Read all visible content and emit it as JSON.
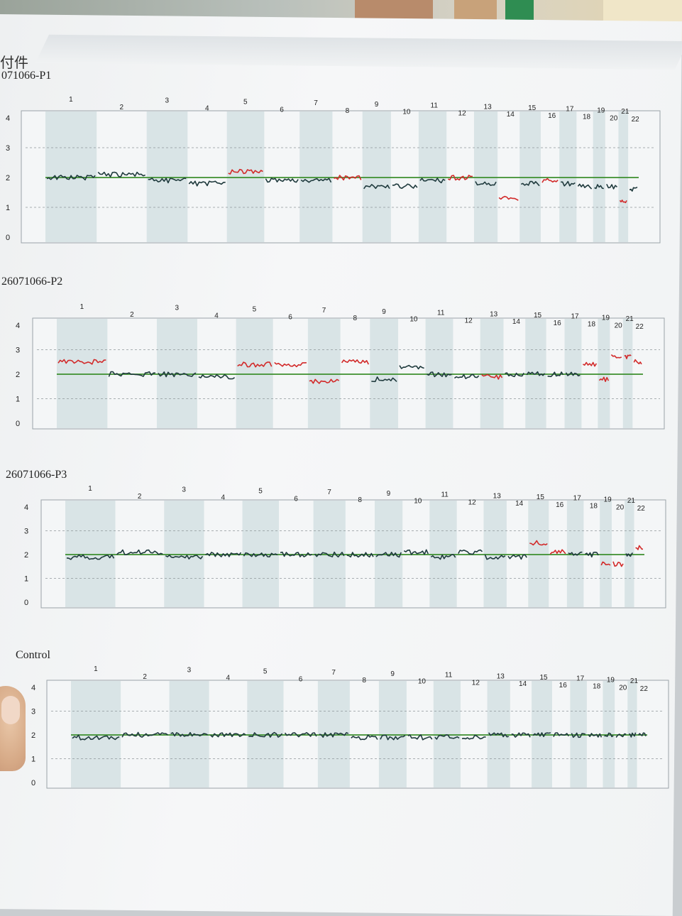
{
  "page": {
    "header_fragment": "付件"
  },
  "chart_data": [
    {
      "type": "line",
      "title": "071066-P1",
      "ylim": [
        0,
        4
      ],
      "yticks": [
        "0",
        "1",
        "2",
        "3",
        "4"
      ],
      "baseline": 2,
      "grid": true,
      "chromosomes": [
        "1",
        "2",
        "3",
        "4",
        "5",
        "6",
        "7",
        "8",
        "9",
        "10",
        "11",
        "12",
        "13",
        "14",
        "15",
        "16",
        "17",
        "18",
        "19",
        "20",
        "21",
        "22"
      ],
      "segments": [
        {
          "chr": "1",
          "value": 2.0
        },
        {
          "chr": "2",
          "value": 2.1
        },
        {
          "chr": "3",
          "value": 1.9
        },
        {
          "chr": "4",
          "value": 1.8
        },
        {
          "chr": "5",
          "value": 2.2,
          "flag": "gain"
        },
        {
          "chr": "6",
          "value": 1.9
        },
        {
          "chr": "7",
          "value": 1.9
        },
        {
          "chr": "8",
          "value": 2.0,
          "flag": "gain"
        },
        {
          "chr": "9",
          "value": 1.7
        },
        {
          "chr": "10",
          "value": 1.7
        },
        {
          "chr": "11",
          "value": 1.9
        },
        {
          "chr": "12",
          "value": 2.0,
          "flag": "gain"
        },
        {
          "chr": "13",
          "value": 1.8
        },
        {
          "chr": "14",
          "value": 1.3,
          "flag": "loss"
        },
        {
          "chr": "15",
          "value": 1.8
        },
        {
          "chr": "16",
          "value": 1.9,
          "flag": "gain"
        },
        {
          "chr": "17",
          "value": 1.8
        },
        {
          "chr": "18",
          "value": 1.7
        },
        {
          "chr": "19",
          "value": 1.7
        },
        {
          "chr": "20",
          "value": 1.7
        },
        {
          "chr": "21",
          "value": 1.2,
          "flag": "loss"
        },
        {
          "chr": "22",
          "value": 1.6
        }
      ]
    },
    {
      "type": "line",
      "title": "26071066-P2",
      "ylim": [
        0,
        4
      ],
      "yticks": [
        "0",
        "1",
        "2",
        "3",
        "4"
      ],
      "baseline": 2,
      "grid": true,
      "chromosomes": [
        "1",
        "2",
        "3",
        "4",
        "5",
        "6",
        "7",
        "8",
        "9",
        "10",
        "11",
        "12",
        "13",
        "14",
        "15",
        "16",
        "17",
        "18",
        "19",
        "20",
        "21",
        "22"
      ],
      "segments": [
        {
          "chr": "1",
          "value": 2.5,
          "flag": "gain"
        },
        {
          "chr": "2",
          "value": 2.0
        },
        {
          "chr": "3",
          "value": 2.0
        },
        {
          "chr": "4",
          "value": 1.9
        },
        {
          "chr": "5",
          "value": 2.4,
          "flag": "gain"
        },
        {
          "chr": "6",
          "value": 2.4,
          "flag": "gain"
        },
        {
          "chr": "7",
          "value": 1.7,
          "flag": "loss"
        },
        {
          "chr": "8",
          "value": 2.5,
          "flag": "gain"
        },
        {
          "chr": "9",
          "value": 1.8
        },
        {
          "chr": "10",
          "value": 2.3
        },
        {
          "chr": "11",
          "value": 2.0
        },
        {
          "chr": "12",
          "value": 1.9
        },
        {
          "chr": "13",
          "value": 1.9,
          "flag": "loss"
        },
        {
          "chr": "14",
          "value": 2.0
        },
        {
          "chr": "15",
          "value": 2.0
        },
        {
          "chr": "16",
          "value": 2.0
        },
        {
          "chr": "17",
          "value": 2.0
        },
        {
          "chr": "18",
          "value": 2.4,
          "flag": "gain"
        },
        {
          "chr": "19",
          "value": 1.8,
          "flag": "loss"
        },
        {
          "chr": "20",
          "value": 2.7,
          "flag": "gain"
        },
        {
          "chr": "21",
          "value": 2.7,
          "flag": "gain"
        },
        {
          "chr": "22",
          "value": 2.5,
          "flag": "gain"
        }
      ]
    },
    {
      "type": "line",
      "title": "26071066-P3",
      "ylim": [
        0,
        4
      ],
      "yticks": [
        "0",
        "1",
        "2",
        "3",
        "4"
      ],
      "baseline": 2,
      "grid": true,
      "chromosomes": [
        "1",
        "2",
        "3",
        "4",
        "5",
        "6",
        "7",
        "8",
        "9",
        "10",
        "11",
        "12",
        "13",
        "14",
        "15",
        "16",
        "17",
        "18",
        "19",
        "20",
        "21",
        "22"
      ],
      "segments": [
        {
          "chr": "1",
          "value": 1.9
        },
        {
          "chr": "2",
          "value": 2.1
        },
        {
          "chr": "3",
          "value": 1.9
        },
        {
          "chr": "4",
          "value": 2.0
        },
        {
          "chr": "5",
          "value": 2.0
        },
        {
          "chr": "6",
          "value": 2.0
        },
        {
          "chr": "7",
          "value": 2.0
        },
        {
          "chr": "8",
          "value": 2.0
        },
        {
          "chr": "9",
          "value": 2.0
        },
        {
          "chr": "10",
          "value": 2.1
        },
        {
          "chr": "11",
          "value": 1.9
        },
        {
          "chr": "12",
          "value": 2.1
        },
        {
          "chr": "13",
          "value": 1.9
        },
        {
          "chr": "14",
          "value": 1.9
        },
        {
          "chr": "15",
          "value": 2.5,
          "flag": "gain"
        },
        {
          "chr": "16",
          "value": 2.1,
          "flag": "gain"
        },
        {
          "chr": "17",
          "value": 2.0
        },
        {
          "chr": "18",
          "value": 2.0
        },
        {
          "chr": "19",
          "value": 1.6,
          "flag": "loss"
        },
        {
          "chr": "20",
          "value": 1.6,
          "flag": "loss"
        },
        {
          "chr": "21",
          "value": 2.0
        },
        {
          "chr": "22",
          "value": 2.3,
          "flag": "gain"
        }
      ]
    },
    {
      "type": "line",
      "title": "Control",
      "ylim": [
        0,
        4
      ],
      "yticks": [
        "0",
        "1",
        "2",
        "3",
        "4"
      ],
      "baseline": 2,
      "grid": true,
      "chromosomes": [
        "1",
        "2",
        "3",
        "4",
        "5",
        "6",
        "7",
        "8",
        "9",
        "10",
        "11",
        "12",
        "13",
        "14",
        "15",
        "16",
        "17",
        "18",
        "19",
        "20",
        "21",
        "22"
      ],
      "segments": [
        {
          "chr": "1",
          "value": 1.9
        },
        {
          "chr": "2",
          "value": 2.0
        },
        {
          "chr": "3",
          "value": 2.0
        },
        {
          "chr": "4",
          "value": 2.0
        },
        {
          "chr": "5",
          "value": 2.0
        },
        {
          "chr": "6",
          "value": 2.0
        },
        {
          "chr": "7",
          "value": 2.0
        },
        {
          "chr": "8",
          "value": 1.9
        },
        {
          "chr": "9",
          "value": 1.9
        },
        {
          "chr": "10",
          "value": 1.9
        },
        {
          "chr": "11",
          "value": 1.9
        },
        {
          "chr": "12",
          "value": 1.9
        },
        {
          "chr": "13",
          "value": 2.0
        },
        {
          "chr": "14",
          "value": 2.0
        },
        {
          "chr": "15",
          "value": 2.0
        },
        {
          "chr": "16",
          "value": 2.0
        },
        {
          "chr": "17",
          "value": 2.0
        },
        {
          "chr": "18",
          "value": 2.0
        },
        {
          "chr": "19",
          "value": 2.0
        },
        {
          "chr": "20",
          "value": 2.0
        },
        {
          "chr": "21",
          "value": 2.0
        },
        {
          "chr": "22",
          "value": 2.0
        }
      ]
    }
  ],
  "colors": {
    "normal": "#1f3a3d",
    "gain": "#d22a2a",
    "loss": "#d22a2a",
    "baseline": "#3d8f2e",
    "band": "#d9e4e6"
  }
}
